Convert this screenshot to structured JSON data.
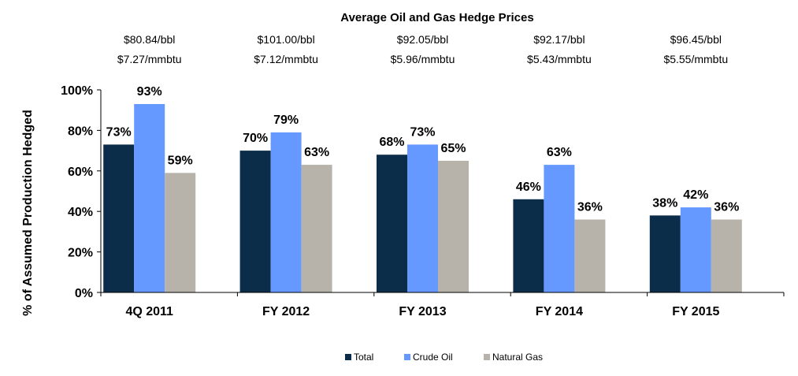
{
  "header": {
    "title": "Average Oil and Gas Hedge Prices",
    "prices": [
      {
        "oil": "$80.84/bbl",
        "gas": "$7.27/mmbtu"
      },
      {
        "oil": "$101.00/bbl",
        "gas": "$7.12/mmbtu"
      },
      {
        "oil": "$92.05/bbl",
        "gas": "$5.96/mmbtu"
      },
      {
        "oil": "$92.17/bbl",
        "gas": "$5.43/mmbtu"
      },
      {
        "oil": "$96.45/bbl",
        "gas": "$5.55/mmbtu"
      }
    ]
  },
  "chart_data": {
    "type": "bar",
    "title": "Average Oil and Gas Hedge Prices",
    "xlabel": "",
    "ylabel": "% of Assumed Production Hedged",
    "categories": [
      "4Q 2011",
      "FY 2012",
      "FY 2013",
      "FY 2014",
      "FY 2015"
    ],
    "ylim": [
      0,
      100
    ],
    "yticks": [
      "0%",
      "20%",
      "40%",
      "60%",
      "80%",
      "100%"
    ],
    "grid": false,
    "legend": "bottom",
    "series": [
      {
        "name": "Total",
        "color": "#0b2d4a",
        "values": [
          73,
          70,
          68,
          46,
          38
        ],
        "labels": [
          "73%",
          "70%",
          "68%",
          "46%",
          "38%"
        ]
      },
      {
        "name": "Crude Oil",
        "color": "#6699ff",
        "values": [
          93,
          79,
          73,
          63,
          42
        ],
        "labels": [
          "93%",
          "79%",
          "73%",
          "63%",
          "42%"
        ]
      },
      {
        "name": "Natural Gas",
        "color": "#b7b3aa",
        "values": [
          59,
          63,
          65,
          36,
          36
        ],
        "labels": [
          "59%",
          "63%",
          "65%",
          "36%",
          "36%"
        ]
      }
    ]
  }
}
